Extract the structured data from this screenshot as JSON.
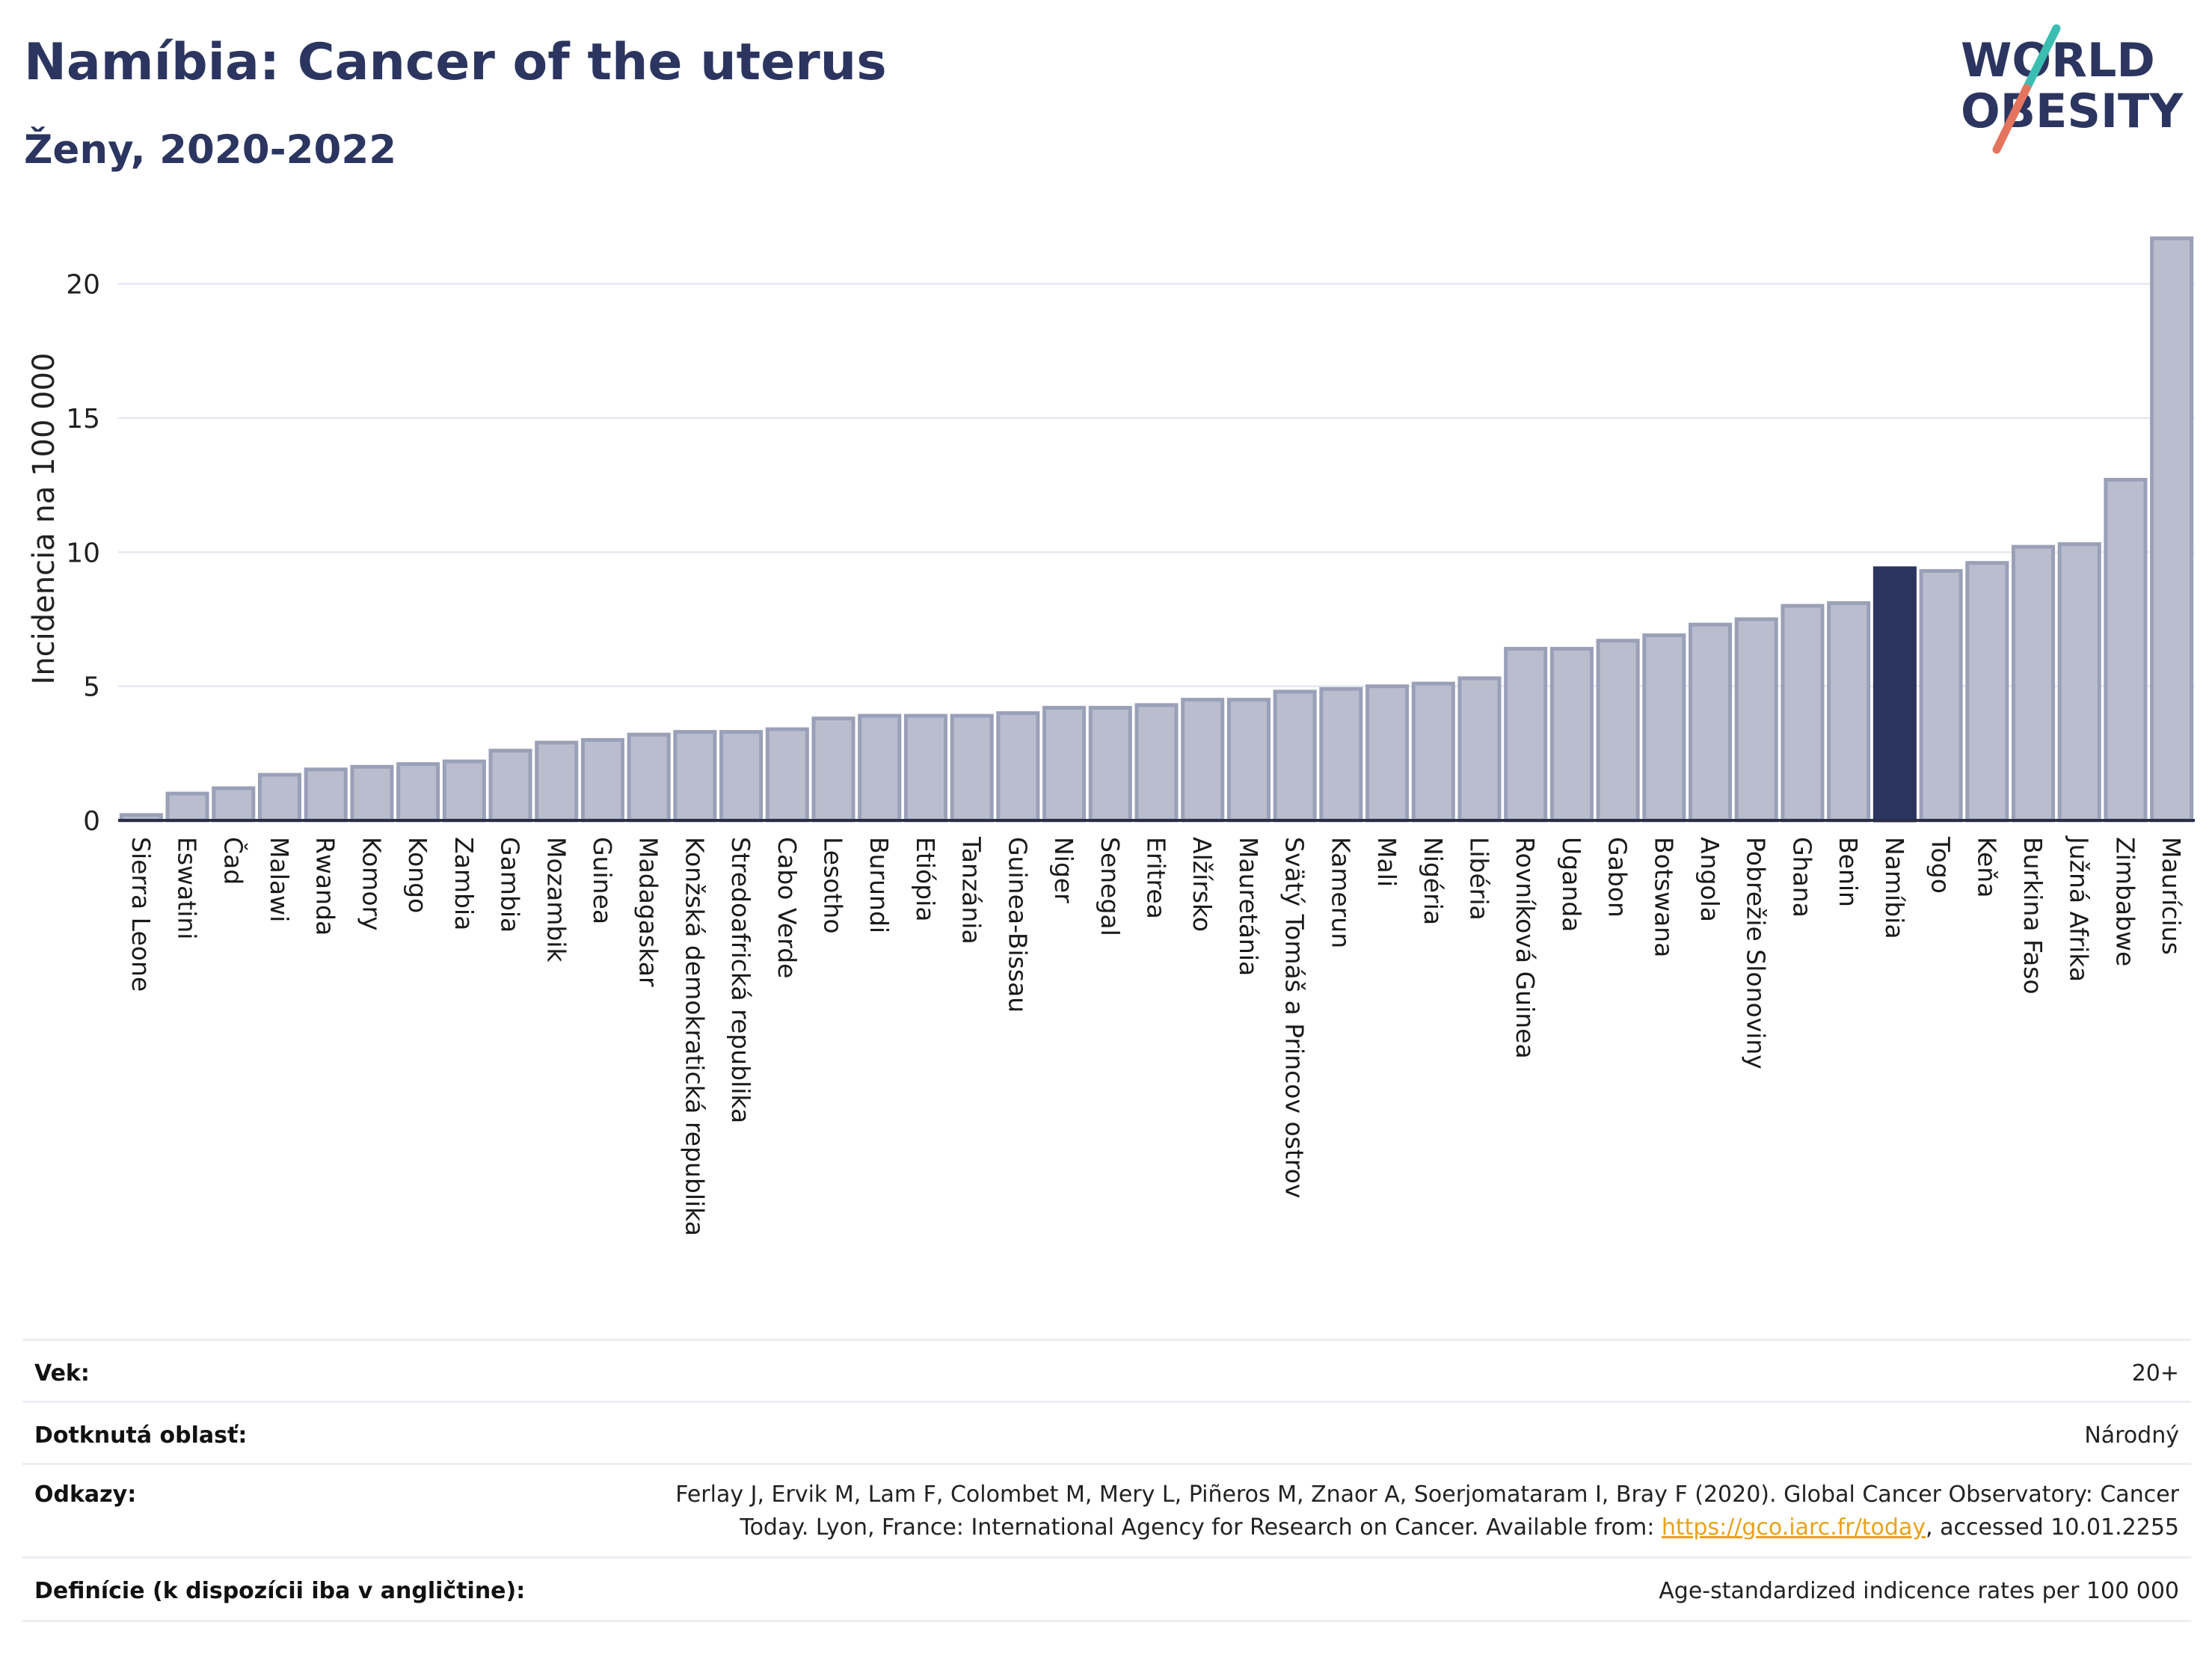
{
  "header": {
    "title": "Namíbia: Cancer of the uterus",
    "subtitle": "Ženy, 2020-2022"
  },
  "logo": {
    "line1": "WORLD",
    "line2": "OBESITY",
    "accent_teal": "#3bbdb1",
    "accent_coral": "#e5745f",
    "text_color": "#2b3560"
  },
  "colors": {
    "bar_fill": "#b9bdcd",
    "bar_stroke": "#9aa0b8",
    "highlight": "#2b3560",
    "axis": "#2b2f45",
    "grid": "#e6e8ef"
  },
  "chart_data": {
    "type": "bar",
    "ylabel": "Incidencia na 100 000",
    "ylim": [
      0,
      22.5
    ],
    "yticks": [
      0,
      5,
      10,
      15,
      20
    ],
    "grid": true,
    "highlight": "Namíbia",
    "categories": [
      "Sierra Leone",
      "Eswatini",
      "Čad",
      "Malawi",
      "Rwanda",
      "Komory",
      "Kongo",
      "Zambia",
      "Gambia",
      "Mozambik",
      "Guinea",
      "Madagaskar",
      "Konžská demokratická republika",
      "Stredoafrická republika",
      "Cabo Verde",
      "Lesotho",
      "Burundi",
      "Etiópia",
      "Tanzánia",
      "Guinea-Bissau",
      "Niger",
      "Senegal",
      "Eritrea",
      "Alžírsko",
      "Mauretánia",
      "Svätý Tomáš a Princov ostrov",
      "Kamerun",
      "Mali",
      "Nigéria",
      "Libéria",
      "Rovníková Guinea",
      "Uganda",
      "Gabon",
      "Botswana",
      "Angola",
      "Pobrežie Slonoviny",
      "Ghana",
      "Benin",
      "Namíbia",
      "Togo",
      "Keňa",
      "Burkina Faso",
      "Južná Afrika",
      "Zimbabwe",
      "Maurícius"
    ],
    "values": [
      0.2,
      1.0,
      1.2,
      1.7,
      1.9,
      2.0,
      2.1,
      2.2,
      2.6,
      2.9,
      3.0,
      3.2,
      3.3,
      3.3,
      3.4,
      3.8,
      3.9,
      3.9,
      3.9,
      4.0,
      4.2,
      4.2,
      4.3,
      4.5,
      4.5,
      4.8,
      4.9,
      5.0,
      5.1,
      5.3,
      6.4,
      6.4,
      6.7,
      6.9,
      7.3,
      7.5,
      8.0,
      8.1,
      9.4,
      9.3,
      9.6,
      10.2,
      10.3,
      12.7,
      21.7
    ]
  },
  "info": {
    "age_label": "Vek:",
    "age_value": "20+",
    "area_label": "Dotknutá oblasť:",
    "area_value": "Národný",
    "refs_label": "Odkazy:",
    "refs_line1": "Ferlay J, Ervik M, Lam F, Colombet M, Mery L, Piñeros M, Znaor A, Soerjomataram I, Bray F (2020). Global Cancer Observatory: Cancer",
    "refs_line2_pre": "Today. Lyon, France: International Agency for Research on Cancer. Available from: ",
    "refs_link": "https://gco.iarc.fr/today",
    "refs_line2_post": ", accessed 10.01.2255",
    "def_label": "Definície (k dispozícii iba v angličtine):",
    "def_value": "Age-standardized indicence rates per 100 000"
  }
}
